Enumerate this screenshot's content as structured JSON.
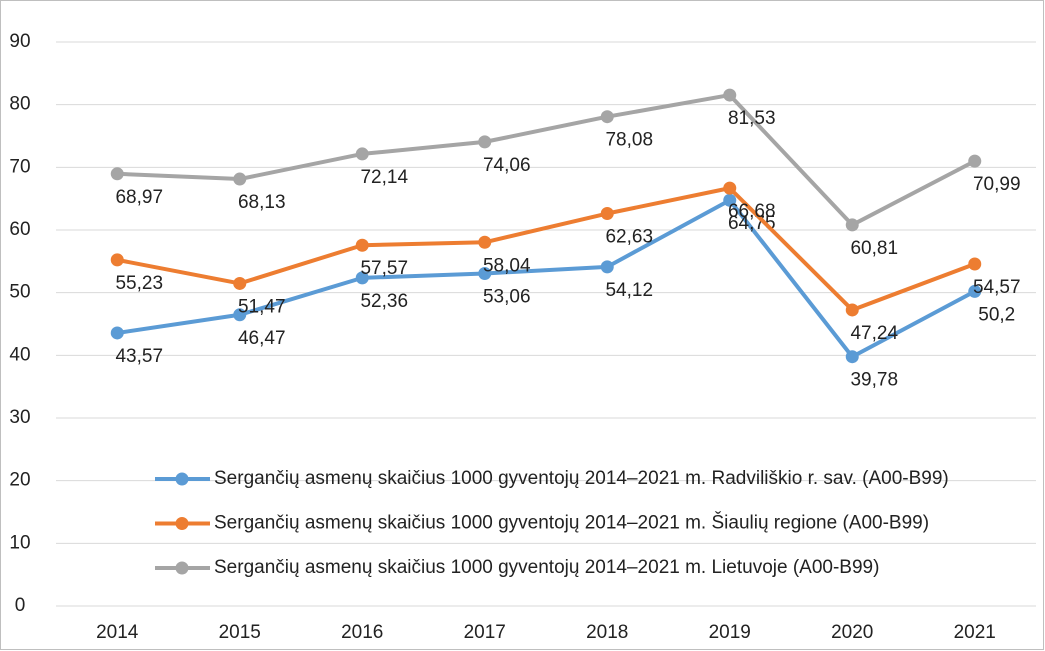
{
  "chart_data": {
    "type": "line",
    "categories": [
      "2014",
      "2015",
      "2016",
      "2017",
      "2018",
      "2019",
      "2020",
      "2021"
    ],
    "series": [
      {
        "name": "Sergančių asmenų skaičius 1000 gyventojų 2014–2021 m. Radviliškio r. sav. (A00-B99)",
        "color": "#5b9bd5",
        "values": [
          43.57,
          46.47,
          52.36,
          53.06,
          54.12,
          64.75,
          39.78,
          50.2
        ],
        "value_labels": [
          "43,57",
          "46,47",
          "52,36",
          "53,06",
          "54,12",
          "64,75",
          "39,78",
          "50,2"
        ]
      },
      {
        "name": "Sergančių asmenų skaičius 1000 gyventojų 2014–2021 m. Šiaulių regione (A00-B99)",
        "color": "#ed7d31",
        "values": [
          55.23,
          51.47,
          57.57,
          58.04,
          62.63,
          66.68,
          47.24,
          54.57
        ],
        "value_labels": [
          "55,23",
          "51,47",
          "57,57",
          "58,04",
          "62,63",
          "66,68",
          "47,24",
          "54,57"
        ]
      },
      {
        "name": "Sergančių asmenų skaičius 1000 gyventojų 2014–2021 m. Lietuvoje (A00-B99)",
        "color": "#a5a5a5",
        "values": [
          68.97,
          68.13,
          72.14,
          74.06,
          78.08,
          81.53,
          60.81,
          70.99
        ],
        "value_labels": [
          "68,97",
          "68,13",
          "72,14",
          "74,06",
          "78,08",
          "81,53",
          "60,81",
          "70,99"
        ]
      }
    ],
    "ylim": [
      0,
      90
    ],
    "yticks": [
      0,
      10,
      20,
      30,
      40,
      50,
      60,
      70,
      80,
      90
    ],
    "grid": true
  }
}
